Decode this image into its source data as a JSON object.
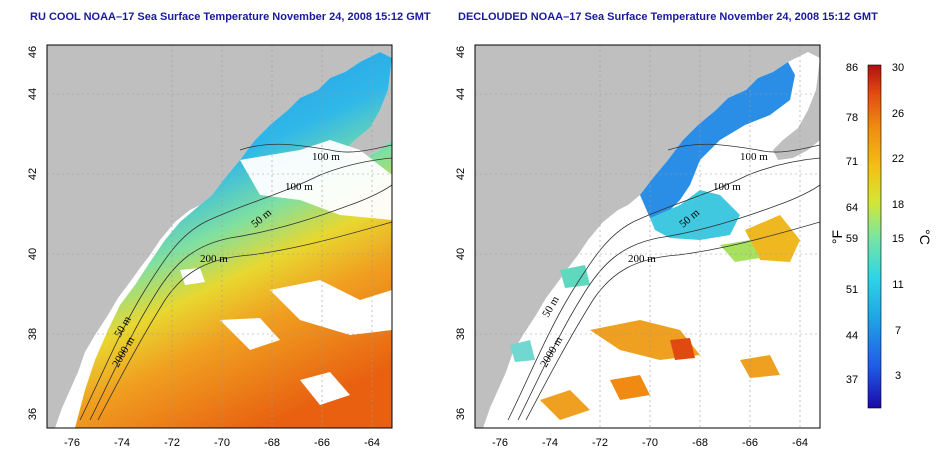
{
  "panels": [
    {
      "title": "RU COOL NOAA–17 Sea Surface Temperature November 24, 2008 15:12 GMT",
      "x_ticks": [
        "-76",
        "-74",
        "-72",
        "-70",
        "-68",
        "-66",
        "-64"
      ],
      "y_ticks": [
        "36",
        "38",
        "40",
        "42",
        "44",
        "46"
      ],
      "contour_labels": [
        "100 m",
        "100 m",
        "50 m",
        "200 m",
        "50 m",
        "2000 m"
      ]
    },
    {
      "title": "DECLOUDED NOAA–17 Sea Surface Temperature November 24, 2008 15:12 GMT",
      "x_ticks": [
        "-76",
        "-74",
        "-72",
        "-70",
        "-68",
        "-66",
        "-64"
      ],
      "y_ticks": [
        "36",
        "38",
        "40",
        "42",
        "44",
        "46"
      ],
      "contour_labels": [
        "100 m",
        "100 m",
        "50 m",
        "200 m",
        "50 m",
        "2000 m"
      ]
    }
  ],
  "colorbar": {
    "fahrenheit_ticks": [
      "86",
      "78",
      "71",
      "64",
      "59",
      "51",
      "44",
      "37"
    ],
    "celsius_ticks": [
      "30",
      "26",
      "22",
      "18",
      "15",
      "11",
      "7",
      "3"
    ],
    "fahrenheit_unit": "°F",
    "celsius_unit": "°C",
    "colors": [
      "#1a0aa8",
      "#1f5be6",
      "#1f9ee6",
      "#2fd4e6",
      "#7ae6a0",
      "#d4e636",
      "#f5c018",
      "#f08a12",
      "#e04a10",
      "#b01010"
    ]
  },
  "colors": {
    "land": "#bfbfbf",
    "title": "#1a1a9c"
  }
}
